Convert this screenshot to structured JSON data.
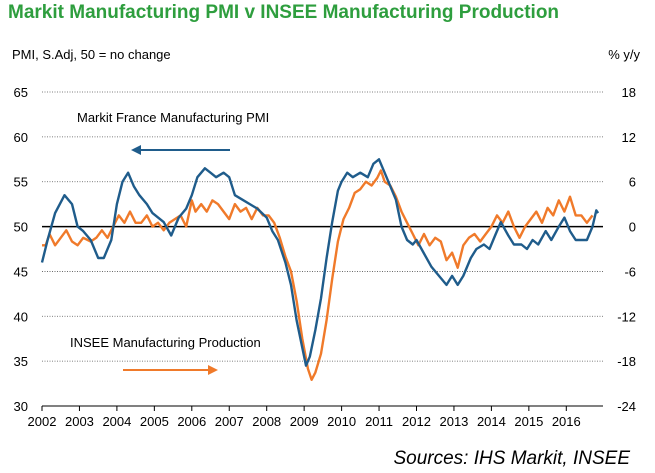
{
  "chart_data": {
    "type": "line",
    "title": "Markit Manufacturing PMI v INSEE Manufacturing Production",
    "left_axis_label": "PMI, S.Adj, 50 = no change",
    "right_axis_label": "% y/y",
    "source": "Sources: IHS Markit, INSEE",
    "x_ticks": [
      "2002",
      "2003",
      "2004",
      "2005",
      "2006",
      "2007",
      "2008",
      "2009",
      "2010",
      "2011",
      "2012",
      "2013",
      "2014",
      "2015",
      "2016"
    ],
    "y_left": {
      "range": [
        30,
        65
      ],
      "ticks": [
        "30",
        "35",
        "40",
        "45",
        "50",
        "55",
        "60",
        "65"
      ]
    },
    "y_right": {
      "range": [
        -24,
        18
      ],
      "ticks": [
        "-24",
        "-18",
        "-12",
        "-6",
        "0",
        "6",
        "12",
        "18"
      ]
    },
    "grid": "horizontal-dotted",
    "colors": {
      "pmi": "#1f5c8b",
      "production": "#f07a2a",
      "title": "#2e9e3e"
    },
    "series": [
      {
        "name": "Markit France Manufacturing PMI",
        "axis": "left",
        "arrow": "left",
        "points": [
          [
            2002.0,
            46.0
          ],
          [
            2002.15,
            48.5
          ],
          [
            2002.35,
            51.5
          ],
          [
            2002.6,
            53.5
          ],
          [
            2002.8,
            52.5
          ],
          [
            2002.95,
            50.0
          ],
          [
            2003.1,
            49.5
          ],
          [
            2003.3,
            48.5
          ],
          [
            2003.5,
            46.5
          ],
          [
            2003.65,
            46.5
          ],
          [
            2003.85,
            48.5
          ],
          [
            2004.0,
            52.5
          ],
          [
            2004.15,
            55.0
          ],
          [
            2004.3,
            56.0
          ],
          [
            2004.45,
            54.5
          ],
          [
            2004.6,
            53.5
          ],
          [
            2004.8,
            52.5
          ],
          [
            2004.95,
            51.5
          ],
          [
            2005.1,
            51.0
          ],
          [
            2005.25,
            50.5
          ],
          [
            2005.45,
            49.0
          ],
          [
            2005.65,
            51.0
          ],
          [
            2005.85,
            52.0
          ],
          [
            2006.0,
            53.5
          ],
          [
            2006.15,
            55.5
          ],
          [
            2006.35,
            56.5
          ],
          [
            2006.5,
            56.0
          ],
          [
            2006.65,
            55.5
          ],
          [
            2006.85,
            56.0
          ],
          [
            2007.0,
            55.5
          ],
          [
            2007.15,
            53.5
          ],
          [
            2007.35,
            53.0
          ],
          [
            2007.55,
            52.5
          ],
          [
            2007.75,
            52.0
          ],
          [
            2008.0,
            51.0
          ],
          [
            2008.15,
            49.5
          ],
          [
            2008.3,
            48.5
          ],
          [
            2008.5,
            46.0
          ],
          [
            2008.65,
            43.5
          ],
          [
            2008.8,
            39.5
          ],
          [
            2008.95,
            36.5
          ],
          [
            2009.05,
            34.5
          ],
          [
            2009.15,
            35.5
          ],
          [
            2009.3,
            38.5
          ],
          [
            2009.45,
            42.0
          ],
          [
            2009.6,
            46.5
          ],
          [
            2009.75,
            50.5
          ],
          [
            2009.9,
            54.0
          ],
          [
            2010.0,
            55.0
          ],
          [
            2010.15,
            56.0
          ],
          [
            2010.3,
            55.5
          ],
          [
            2010.5,
            56.0
          ],
          [
            2010.7,
            55.5
          ],
          [
            2010.85,
            57.0
          ],
          [
            2011.0,
            57.5
          ],
          [
            2011.1,
            56.5
          ],
          [
            2011.25,
            55.0
          ],
          [
            2011.45,
            53.0
          ],
          [
            2011.6,
            50.0
          ],
          [
            2011.75,
            48.5
          ],
          [
            2011.9,
            48.0
          ],
          [
            2012.0,
            48.5
          ],
          [
            2012.2,
            47.0
          ],
          [
            2012.4,
            45.5
          ],
          [
            2012.6,
            44.5
          ],
          [
            2012.8,
            43.5
          ],
          [
            2012.95,
            44.5
          ],
          [
            2013.1,
            43.5
          ],
          [
            2013.25,
            44.5
          ],
          [
            2013.45,
            46.5
          ],
          [
            2013.6,
            47.5
          ],
          [
            2013.8,
            48.0
          ],
          [
            2013.95,
            47.5
          ],
          [
            2014.1,
            49.0
          ],
          [
            2014.25,
            50.5
          ],
          [
            2014.45,
            49.0
          ],
          [
            2014.6,
            48.0
          ],
          [
            2014.8,
            48.0
          ],
          [
            2014.95,
            47.5
          ],
          [
            2015.1,
            48.5
          ],
          [
            2015.25,
            48.0
          ],
          [
            2015.45,
            49.5
          ],
          [
            2015.6,
            48.5
          ],
          [
            2015.8,
            50.0
          ],
          [
            2015.95,
            51.0
          ],
          [
            2016.1,
            49.5
          ],
          [
            2016.25,
            48.5
          ],
          [
            2016.4,
            48.5
          ],
          [
            2016.55,
            48.5
          ],
          [
            2016.7,
            50.0
          ],
          [
            2016.8,
            51.8
          ],
          [
            2016.85,
            51.5
          ]
        ]
      },
      {
        "name": "INSEE Manufacturing Production",
        "axis": "right",
        "arrow": "right",
        "points": [
          [
            2002.0,
            -2.5
          ],
          [
            2002.1,
            -2.5
          ],
          [
            2002.2,
            -1.0
          ],
          [
            2002.35,
            -2.5
          ],
          [
            2002.5,
            -1.5
          ],
          [
            2002.65,
            -0.5
          ],
          [
            2002.8,
            -2.0
          ],
          [
            2002.95,
            -2.5
          ],
          [
            2003.1,
            -1.5
          ],
          [
            2003.3,
            -2.0
          ],
          [
            2003.45,
            -1.5
          ],
          [
            2003.6,
            -0.5
          ],
          [
            2003.75,
            -1.5
          ],
          [
            2003.9,
            0.0
          ],
          [
            2004.05,
            1.5
          ],
          [
            2004.2,
            0.5
          ],
          [
            2004.35,
            2.0
          ],
          [
            2004.5,
            0.5
          ],
          [
            2004.65,
            0.5
          ],
          [
            2004.8,
            1.5
          ],
          [
            2004.95,
            0.0
          ],
          [
            2005.1,
            0.5
          ],
          [
            2005.25,
            -0.5
          ],
          [
            2005.4,
            0.5
          ],
          [
            2005.55,
            1.0
          ],
          [
            2005.7,
            1.5
          ],
          [
            2005.85,
            0.0
          ],
          [
            2006.0,
            3.5
          ],
          [
            2006.1,
            2.0
          ],
          [
            2006.25,
            3.0
          ],
          [
            2006.4,
            2.0
          ],
          [
            2006.55,
            3.5
          ],
          [
            2006.7,
            3.0
          ],
          [
            2006.85,
            2.0
          ],
          [
            2007.0,
            1.0
          ],
          [
            2007.15,
            3.0
          ],
          [
            2007.3,
            2.0
          ],
          [
            2007.45,
            2.5
          ],
          [
            2007.6,
            1.0
          ],
          [
            2007.75,
            2.5
          ],
          [
            2007.9,
            1.5
          ],
          [
            2008.05,
            1.5
          ],
          [
            2008.2,
            0.5
          ],
          [
            2008.35,
            -1.5
          ],
          [
            2008.5,
            -4.0
          ],
          [
            2008.65,
            -6.0
          ],
          [
            2008.8,
            -10.0
          ],
          [
            2008.95,
            -15.0
          ],
          [
            2009.1,
            -19.0
          ],
          [
            2009.2,
            -20.5
          ],
          [
            2009.3,
            -19.5
          ],
          [
            2009.45,
            -17.0
          ],
          [
            2009.6,
            -12.5
          ],
          [
            2009.75,
            -7.0
          ],
          [
            2009.9,
            -2.0
          ],
          [
            2010.05,
            1.0
          ],
          [
            2010.2,
            2.5
          ],
          [
            2010.35,
            4.5
          ],
          [
            2010.5,
            5.0
          ],
          [
            2010.65,
            6.0
          ],
          [
            2010.8,
            5.5
          ],
          [
            2010.95,
            6.5
          ],
          [
            2011.05,
            7.5
          ],
          [
            2011.15,
            6.0
          ],
          [
            2011.3,
            5.5
          ],
          [
            2011.45,
            4.0
          ],
          [
            2011.6,
            2.0
          ],
          [
            2011.75,
            0.5
          ],
          [
            2011.9,
            -1.0
          ],
          [
            2012.05,
            -2.5
          ],
          [
            2012.2,
            -1.0
          ],
          [
            2012.35,
            -2.5
          ],
          [
            2012.5,
            -1.5
          ],
          [
            2012.65,
            -2.0
          ],
          [
            2012.8,
            -4.5
          ],
          [
            2012.95,
            -3.5
          ],
          [
            2013.1,
            -5.5
          ],
          [
            2013.25,
            -2.5
          ],
          [
            2013.4,
            -1.5
          ],
          [
            2013.55,
            -1.0
          ],
          [
            2013.7,
            -2.0
          ],
          [
            2013.85,
            -1.0
          ],
          [
            2014.0,
            0.0
          ],
          [
            2014.15,
            1.5
          ],
          [
            2014.3,
            0.5
          ],
          [
            2014.45,
            2.0
          ],
          [
            2014.6,
            0.0
          ],
          [
            2014.75,
            -1.5
          ],
          [
            2014.9,
            0.0
          ],
          [
            2015.05,
            1.0
          ],
          [
            2015.2,
            2.0
          ],
          [
            2015.35,
            0.5
          ],
          [
            2015.5,
            2.5
          ],
          [
            2015.65,
            1.5
          ],
          [
            2015.8,
            3.5
          ],
          [
            2015.95,
            2.0
          ],
          [
            2016.1,
            4.0
          ],
          [
            2016.25,
            1.5
          ],
          [
            2016.4,
            1.5
          ],
          [
            2016.55,
            0.5
          ],
          [
            2016.7,
            1.5
          ]
        ]
      }
    ]
  }
}
